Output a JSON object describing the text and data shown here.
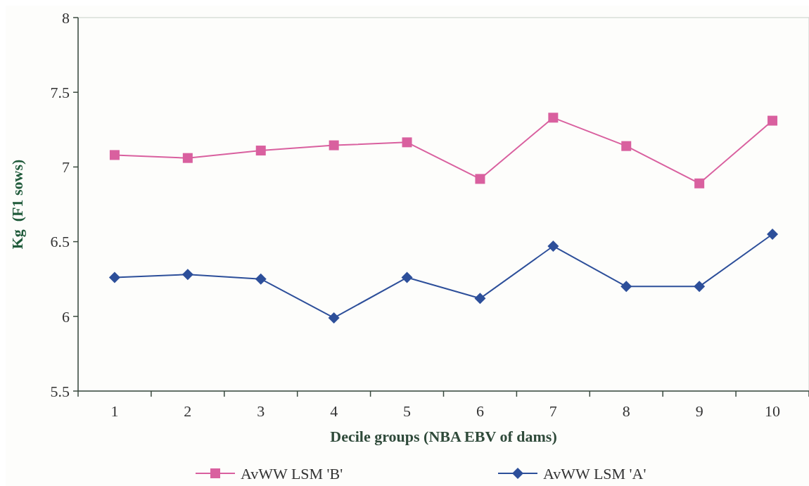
{
  "chart_data": {
    "type": "line",
    "xlabel": "Decile groups (NBA EBV of dams)",
    "ylabel": "Kg  (F1 sows)",
    "categories": [
      "1",
      "2",
      "3",
      "4",
      "5",
      "6",
      "7",
      "8",
      "9",
      "10"
    ],
    "series": [
      {
        "name": "AvWW LSM 'B'",
        "color": "#d9609f",
        "marker": "square",
        "values": [
          7.08,
          7.06,
          7.11,
          7.145,
          7.165,
          6.92,
          7.33,
          7.14,
          6.89,
          7.31
        ]
      },
      {
        "name": "AvWW LSM 'A'",
        "color": "#2d4f9a",
        "marker": "diamond",
        "values": [
          6.26,
          6.28,
          6.25,
          5.99,
          6.26,
          6.12,
          6.47,
          6.2,
          6.2,
          6.55
        ]
      }
    ],
    "ylim": [
      5.5,
      8
    ],
    "yticks": [
      5.5,
      6,
      {
        "value": 6.5,
        "label": "6.5"
      },
      7,
      7.5,
      8
    ],
    "legend": "bottom",
    "grid": false
  }
}
